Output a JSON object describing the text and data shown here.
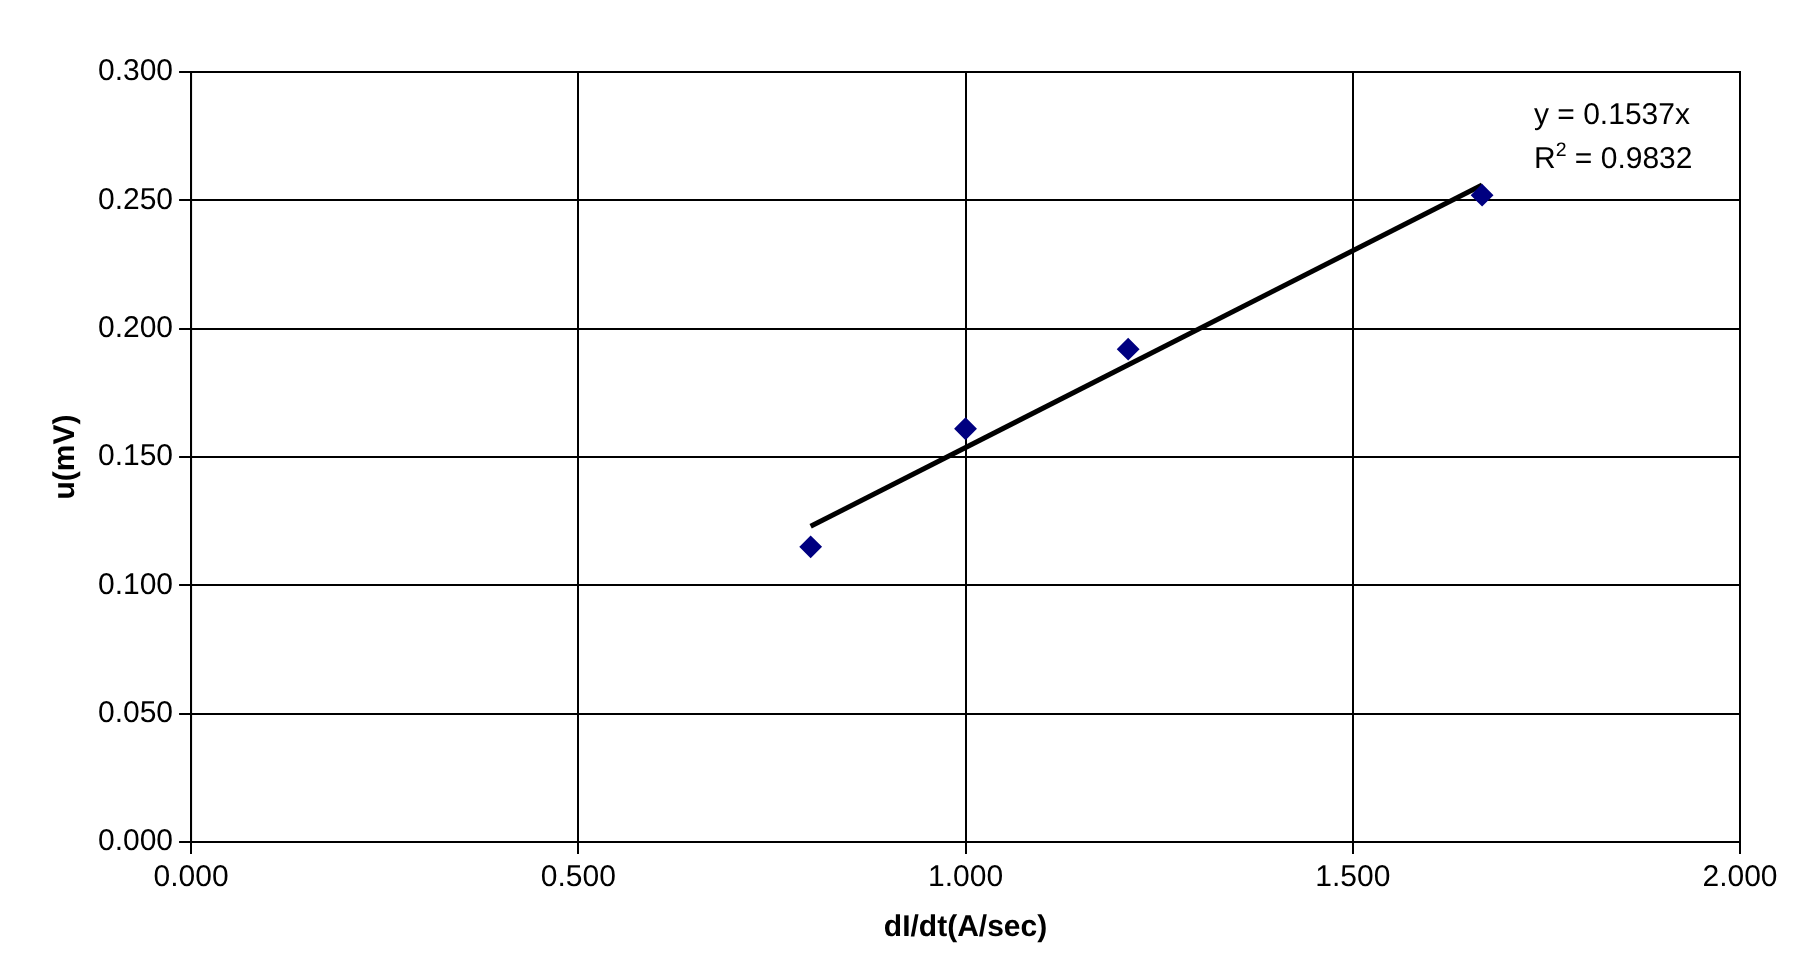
{
  "chart_data": {
    "type": "scatter",
    "xlabel": "dI/dt(A/sec)",
    "ylabel": "u(mV)",
    "series": [
      {
        "marker": "diamond",
        "color": "#000080",
        "x": [
          0.8,
          1.0,
          1.21,
          1.667
        ],
        "values": [
          0.115,
          0.161,
          0.192,
          0.252
        ]
      },
      {
        "type": "line",
        "marker": "none",
        "color": "#000000",
        "x": [
          0.8,
          1.667
        ],
        "values": [
          0.123,
          0.256
        ]
      }
    ],
    "xlim": [
      0,
      2
    ],
    "xticks": [
      {
        "value": 0,
        "label": "0.000"
      },
      {
        "value": 0.5,
        "label": "0.500"
      },
      {
        "value": 1,
        "label": "1.000"
      },
      {
        "value": 1.5,
        "label": "1.500"
      },
      {
        "value": 2,
        "label": "2.000"
      }
    ],
    "ylim": [
      0,
      0.3
    ],
    "yticks": [
      {
        "value": 0,
        "label": "0.000"
      },
      {
        "value": 0.05,
        "label": "0.050"
      },
      {
        "value": 0.1,
        "label": "0.100"
      },
      {
        "value": 0.15,
        "label": "0.150"
      },
      {
        "value": 0.2,
        "label": "0.200"
      },
      {
        "value": 0.25,
        "label": "0.250"
      },
      {
        "value": 0.3,
        "label": "0.300"
      }
    ],
    "annotations": [
      "y = 0.1537x",
      "R$^{2}$ = 0.9832"
    ],
    "grid": true
  }
}
